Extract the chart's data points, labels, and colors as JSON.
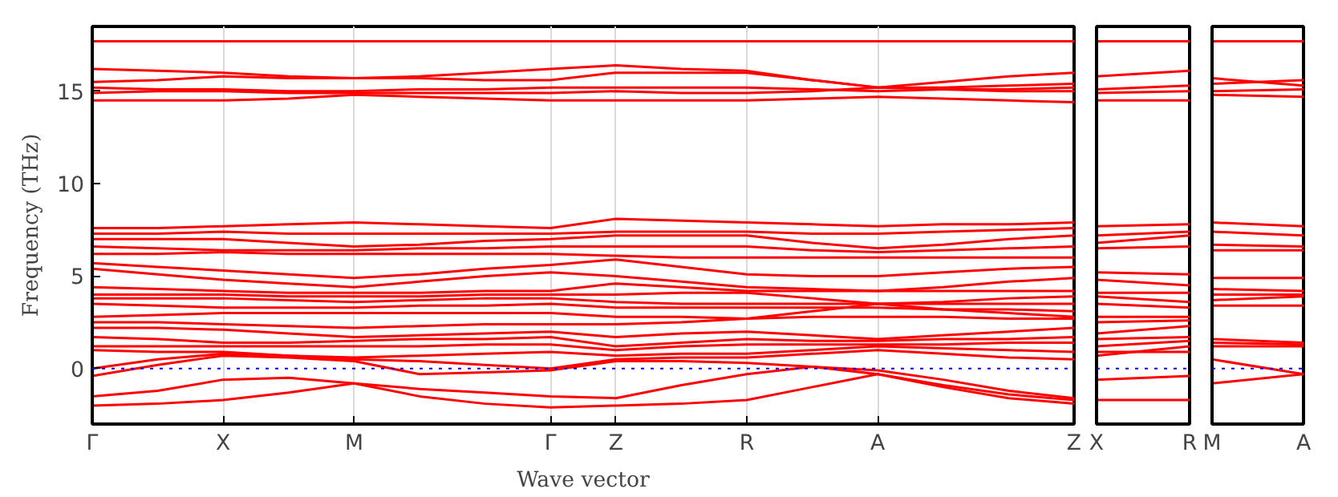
{
  "chart_data": [
    {
      "type": "line",
      "xlabel": "Wave vector",
      "ylabel": "Frequency (THz)",
      "categories": [
        "Γ",
        null,
        "X",
        null,
        "M",
        null,
        null,
        "Γ",
        "Z",
        null,
        "R",
        null,
        "A",
        null,
        null,
        "Z"
      ],
      "ylim": [
        -3,
        18.5
      ],
      "yticks": [
        0,
        5,
        10,
        15
      ],
      "grid": "x",
      "ref_lines": [
        {
          "axis": "y",
          "value": 0,
          "color": "#0000ff",
          "line_style": "dotted"
        }
      ],
      "series": [
        {
          "color": "#ff0000",
          "values": [
            17.7,
            17.7,
            17.7,
            17.7,
            17.7,
            17.7,
            17.7,
            17.7,
            17.7,
            17.7,
            17.7,
            17.7,
            17.7,
            17.7,
            17.7,
            17.7
          ]
        },
        {
          "color": "#ff0000",
          "values": [
            16.2,
            16.1,
            16.0,
            15.8,
            15.7,
            15.8,
            16.0,
            16.2,
            16.4,
            16.2,
            16.1,
            15.6,
            15.2,
            15.5,
            15.8,
            16.0
          ]
        },
        {
          "color": "#ff0000",
          "values": [
            15.5,
            15.6,
            15.8,
            15.7,
            15.7,
            15.7,
            15.6,
            15.6,
            16.0,
            16.0,
            16.0,
            15.6,
            15.2,
            15.2,
            15.3,
            15.4
          ]
        },
        {
          "color": "#ff0000",
          "values": [
            15.2,
            15.1,
            15.1,
            15.0,
            15.0,
            15.1,
            15.1,
            15.2,
            15.2,
            15.2,
            15.2,
            15.1,
            15.0,
            15.1,
            15.1,
            15.2
          ]
        },
        {
          "color": "#ff0000",
          "values": [
            14.9,
            15.0,
            15.0,
            14.9,
            14.9,
            14.9,
            14.9,
            14.9,
            15.0,
            14.9,
            14.9,
            15.0,
            15.2,
            15.1,
            15.0,
            15.0
          ]
        },
        {
          "color": "#ff0000",
          "values": [
            14.5,
            14.5,
            14.5,
            14.6,
            14.8,
            14.7,
            14.6,
            14.5,
            14.5,
            14.5,
            14.5,
            14.6,
            14.7,
            14.6,
            14.5,
            14.4
          ]
        },
        {
          "color": "#ff0000",
          "values": [
            7.6,
            7.6,
            7.7,
            7.8,
            7.9,
            7.8,
            7.7,
            7.6,
            8.1,
            8.0,
            7.9,
            7.8,
            7.7,
            7.8,
            7.8,
            7.9
          ]
        },
        {
          "color": "#ff0000",
          "values": [
            7.3,
            7.3,
            7.4,
            7.3,
            7.3,
            7.3,
            7.3,
            7.3,
            7.4,
            7.4,
            7.4,
            7.3,
            7.3,
            7.4,
            7.5,
            7.6
          ]
        },
        {
          "color": "#ff0000",
          "values": [
            7.0,
            7.0,
            7.0,
            6.8,
            6.6,
            6.7,
            6.9,
            7.0,
            7.2,
            7.2,
            7.2,
            6.8,
            6.5,
            6.7,
            7.0,
            7.2
          ]
        },
        {
          "color": "#ff0000",
          "values": [
            6.6,
            6.5,
            6.4,
            6.4,
            6.4,
            6.5,
            6.5,
            6.6,
            6.6,
            6.6,
            6.6,
            6.4,
            6.3,
            6.4,
            6.5,
            6.6
          ]
        },
        {
          "color": "#ff0000",
          "values": [
            6.2,
            6.2,
            6.3,
            6.2,
            6.2,
            6.2,
            6.2,
            6.2,
            6.1,
            6.0,
            6.0,
            6.0,
            6.0,
            6.0,
            6.0,
            6.0
          ]
        },
        {
          "color": "#ff0000",
          "values": [
            5.7,
            5.5,
            5.3,
            5.1,
            4.9,
            5.1,
            5.4,
            5.6,
            5.9,
            5.5,
            5.1,
            5.0,
            5.0,
            5.2,
            5.4,
            5.5
          ]
        },
        {
          "color": "#ff0000",
          "values": [
            5.4,
            5.1,
            4.8,
            4.6,
            4.4,
            4.7,
            5.0,
            5.2,
            5.0,
            4.7,
            4.4,
            4.3,
            4.2,
            4.4,
            4.7,
            4.9
          ]
        },
        {
          "color": "#ff0000",
          "values": [
            4.4,
            4.3,
            4.2,
            4.1,
            4.1,
            4.1,
            4.2,
            4.2,
            4.6,
            4.4,
            4.2,
            4.2,
            4.2,
            4.2,
            4.2,
            4.2
          ]
        },
        {
          "color": "#ff0000",
          "values": [
            4.0,
            4.0,
            4.0,
            3.9,
            3.9,
            3.9,
            4.0,
            4.0,
            4.0,
            4.1,
            4.1,
            3.8,
            3.5,
            3.6,
            3.8,
            3.9
          ]
        },
        {
          "color": "#ff0000",
          "values": [
            3.8,
            3.8,
            3.8,
            3.7,
            3.6,
            3.7,
            3.8,
            3.8,
            3.6,
            3.5,
            3.5,
            3.5,
            3.5,
            3.5,
            3.5,
            3.5
          ]
        },
        {
          "color": "#ff0000",
          "values": [
            3.5,
            3.4,
            3.3,
            3.3,
            3.3,
            3.4,
            3.4,
            3.5,
            3.3,
            3.3,
            3.3,
            3.3,
            3.3,
            3.2,
            3.2,
            3.1
          ]
        },
        {
          "color": "#ff0000",
          "values": [
            2.8,
            2.9,
            3.0,
            3.0,
            3.0,
            3.0,
            3.0,
            3.0,
            2.8,
            2.8,
            2.7,
            3.1,
            3.5,
            3.2,
            3.0,
            2.8
          ]
        },
        {
          "color": "#ff0000",
          "values": [
            2.5,
            2.5,
            2.4,
            2.3,
            2.2,
            2.3,
            2.4,
            2.4,
            2.4,
            2.5,
            2.7,
            2.8,
            2.8,
            2.8,
            2.7,
            2.7
          ]
        },
        {
          "color": "#ff0000",
          "values": [
            2.2,
            2.2,
            2.1,
            1.9,
            1.7,
            1.8,
            1.9,
            2.0,
            1.7,
            1.9,
            2.0,
            1.8,
            1.6,
            1.8,
            2.0,
            2.2
          ]
        },
        {
          "color": "#ff0000",
          "values": [
            1.7,
            1.6,
            1.4,
            1.4,
            1.5,
            1.6,
            1.6,
            1.7,
            1.2,
            1.4,
            1.6,
            1.5,
            1.5,
            1.6,
            1.6,
            1.7
          ]
        },
        {
          "color": "#ff0000",
          "values": [
            1.2,
            1.2,
            1.2,
            1.2,
            1.2,
            1.2,
            1.3,
            1.3,
            1.0,
            1.2,
            1.3,
            1.3,
            1.3,
            1.3,
            1.4,
            1.4
          ]
        },
        {
          "color": "#ff0000",
          "values": [
            1.0,
            0.9,
            0.9,
            0.7,
            0.6,
            0.7,
            0.8,
            0.9,
            0.7,
            0.8,
            0.8,
            1.0,
            1.2,
            1.1,
            1.0,
            0.9
          ]
        },
        {
          "color": "#ff0000",
          "values": [
            0.0,
            0.5,
            0.8,
            0.7,
            0.5,
            0.4,
            0.2,
            0.0,
            0.5,
            0.6,
            0.6,
            0.8,
            1.0,
            0.8,
            0.6,
            0.5
          ]
        },
        {
          "color": "#ff0000",
          "values": [
            -0.4,
            0.2,
            0.7,
            0.6,
            0.4,
            -0.3,
            -0.2,
            -0.1,
            0.4,
            0.4,
            0.3,
            0.1,
            -0.1,
            -0.6,
            -1.2,
            -1.6
          ]
        },
        {
          "color": "#ff0000",
          "values": [
            -1.5,
            -1.2,
            -0.6,
            -0.5,
            -0.8,
            -1.1,
            -1.3,
            -1.5,
            -1.6,
            -0.9,
            -0.3,
            0.1,
            -0.3,
            -0.9,
            -1.4,
            -1.7
          ]
        },
        {
          "color": "#ff0000",
          "values": [
            -2.0,
            -1.9,
            -1.7,
            -1.3,
            -0.8,
            -1.5,
            -1.9,
            -2.1,
            -2.0,
            -1.9,
            -1.7,
            -1.0,
            -0.3,
            -1.0,
            -1.6,
            -1.9
          ]
        }
      ]
    },
    {
      "type": "line",
      "categories": [
        "X",
        "R"
      ],
      "ylim": [
        -3,
        18.5
      ],
      "yticks": [
        0,
        5,
        10,
        15
      ],
      "tick_labels": "x",
      "grid": "x",
      "ref_lines": [
        {
          "axis": "y",
          "value": 0,
          "color": "#0000ff",
          "line_style": "dotted"
        }
      ],
      "series": [
        {
          "color": "#ff0000",
          "values": [
            17.7,
            17.7
          ]
        },
        {
          "color": "#ff0000",
          "values": [
            15.8,
            16.1
          ]
        },
        {
          "color": "#ff0000",
          "values": [
            15.1,
            15.3
          ]
        },
        {
          "color": "#ff0000",
          "values": [
            14.9,
            15.0
          ]
        },
        {
          "color": "#ff0000",
          "values": [
            14.5,
            14.5
          ]
        },
        {
          "color": "#ff0000",
          "values": [
            7.7,
            7.8
          ]
        },
        {
          "color": "#ff0000",
          "values": [
            7.2,
            7.4
          ]
        },
        {
          "color": "#ff0000",
          "values": [
            6.8,
            7.2
          ]
        },
        {
          "color": "#ff0000",
          "values": [
            6.5,
            6.6
          ]
        },
        {
          "color": "#ff0000",
          "values": [
            5.2,
            5.1
          ]
        },
        {
          "color": "#ff0000",
          "values": [
            4.8,
            4.5
          ]
        },
        {
          "color": "#ff0000",
          "values": [
            4.1,
            4.1
          ]
        },
        {
          "color": "#ff0000",
          "values": [
            3.9,
            3.6
          ]
        },
        {
          "color": "#ff0000",
          "values": [
            3.5,
            3.3
          ]
        },
        {
          "color": "#ff0000",
          "values": [
            2.8,
            2.8
          ]
        },
        {
          "color": "#ff0000",
          "values": [
            2.5,
            2.6
          ]
        },
        {
          "color": "#ff0000",
          "values": [
            1.9,
            2.3
          ]
        },
        {
          "color": "#ff0000",
          "values": [
            1.6,
            1.7
          ]
        },
        {
          "color": "#ff0000",
          "values": [
            1.2,
            1.5
          ]
        },
        {
          "color": "#ff0000",
          "values": [
            0.9,
            0.9
          ]
        },
        {
          "color": "#ff0000",
          "values": [
            0.7,
            1.2
          ]
        },
        {
          "color": "#ff0000",
          "values": [
            -0.6,
            -0.4
          ]
        },
        {
          "color": "#ff0000",
          "values": [
            -1.7,
            -1.7
          ]
        }
      ]
    },
    {
      "type": "line",
      "categories": [
        "M",
        "A"
      ],
      "ylim": [
        -3,
        18.5
      ],
      "yticks": [
        0,
        5,
        10,
        15
      ],
      "tick_labels": "x",
      "grid": "x",
      "ref_lines": [
        {
          "axis": "y",
          "value": 0,
          "color": "#0000ff",
          "line_style": "dotted"
        }
      ],
      "series": [
        {
          "color": "#ff0000",
          "values": [
            17.7,
            17.7
          ]
        },
        {
          "color": "#ff0000",
          "values": [
            15.7,
            15.3
          ]
        },
        {
          "color": "#ff0000",
          "values": [
            15.4,
            15.6
          ]
        },
        {
          "color": "#ff0000",
          "values": [
            15.0,
            15.1
          ]
        },
        {
          "color": "#ff0000",
          "values": [
            14.8,
            14.7
          ]
        },
        {
          "color": "#ff0000",
          "values": [
            7.9,
            7.7
          ]
        },
        {
          "color": "#ff0000",
          "values": [
            7.4,
            7.2
          ]
        },
        {
          "color": "#ff0000",
          "values": [
            6.7,
            6.6
          ]
        },
        {
          "color": "#ff0000",
          "values": [
            6.4,
            6.4
          ]
        },
        {
          "color": "#ff0000",
          "values": [
            4.9,
            4.9
          ]
        },
        {
          "color": "#ff0000",
          "values": [
            4.3,
            4.2
          ]
        },
        {
          "color": "#ff0000",
          "values": [
            4.0,
            4.0
          ]
        },
        {
          "color": "#ff0000",
          "values": [
            3.7,
            3.9
          ]
        },
        {
          "color": "#ff0000",
          "values": [
            3.4,
            3.4
          ]
        },
        {
          "color": "#ff0000",
          "values": [
            1.6,
            1.4
          ]
        },
        {
          "color": "#ff0000",
          "values": [
            1.4,
            1.3
          ]
        },
        {
          "color": "#ff0000",
          "values": [
            1.2,
            1.2
          ]
        },
        {
          "color": "#ff0000",
          "values": [
            0.5,
            -0.3
          ]
        },
        {
          "color": "#ff0000",
          "values": [
            -0.8,
            -0.3
          ]
        }
      ]
    }
  ]
}
